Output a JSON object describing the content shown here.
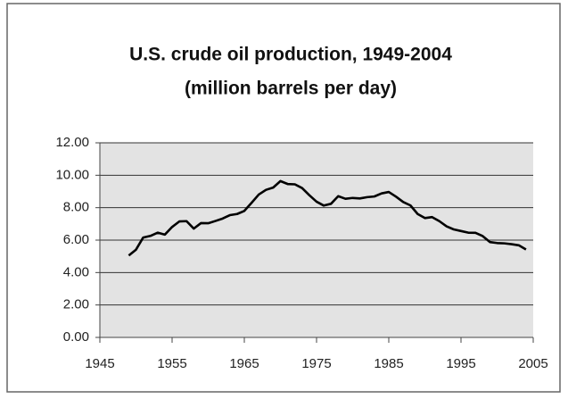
{
  "chart_data": {
    "type": "line",
    "title": "U.S. crude oil production, 1949-2004",
    "subtitle": "(million barrels per day)",
    "x": [
      1949,
      1950,
      1951,
      1952,
      1953,
      1954,
      1955,
      1956,
      1957,
      1958,
      1959,
      1960,
      1961,
      1962,
      1963,
      1964,
      1965,
      1966,
      1967,
      1968,
      1969,
      1970,
      1971,
      1972,
      1973,
      1974,
      1975,
      1976,
      1977,
      1978,
      1979,
      1980,
      1981,
      1982,
      1983,
      1984,
      1985,
      1986,
      1987,
      1988,
      1989,
      1990,
      1991,
      1992,
      1993,
      1994,
      1995,
      1996,
      1997,
      1998,
      1999,
      2000,
      2001,
      2002,
      2003,
      2004
    ],
    "values": [
      5.05,
      5.41,
      6.16,
      6.26,
      6.46,
      6.34,
      6.81,
      7.15,
      7.17,
      6.71,
      7.05,
      7.04,
      7.18,
      7.33,
      7.54,
      7.61,
      7.8,
      8.3,
      8.81,
      9.1,
      9.24,
      9.64,
      9.46,
      9.44,
      9.21,
      8.77,
      8.37,
      8.13,
      8.24,
      8.71,
      8.55,
      8.6,
      8.57,
      8.65,
      8.69,
      8.88,
      8.97,
      8.68,
      8.35,
      8.14,
      7.61,
      7.36,
      7.42,
      7.17,
      6.85,
      6.66,
      6.56,
      6.46,
      6.45,
      6.25,
      5.88,
      5.82,
      5.8,
      5.75,
      5.68,
      5.42
    ],
    "color": "#000000",
    "xlim": [
      1945,
      2005
    ],
    "xticks": [
      1945,
      1955,
      1965,
      1975,
      1985,
      1995,
      2005
    ],
    "ylim": [
      0,
      12
    ],
    "yticks": [
      {
        "value": 0,
        "label": "0.00"
      },
      {
        "value": 2,
        "label": "2.00"
      },
      {
        "value": 4,
        "label": "4.00"
      },
      {
        "value": 6,
        "label": "6.00"
      },
      {
        "value": 8,
        "label": "8.00"
      },
      {
        "value": 10,
        "label": "10.00"
      },
      {
        "value": 12,
        "label": "12.00"
      }
    ],
    "grid": true
  }
}
